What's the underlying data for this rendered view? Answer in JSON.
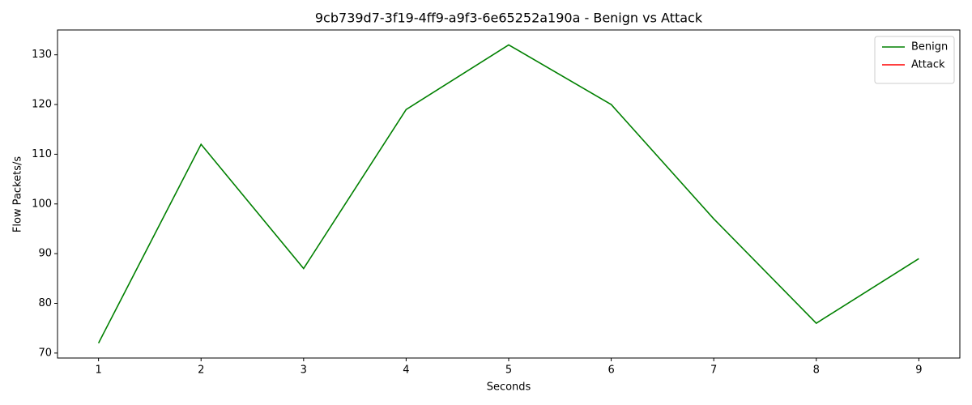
{
  "chart_data": {
    "type": "line",
    "title": "9cb739d7-3f19-4ff9-a9f3-6e65252a190a - Benign vs Attack",
    "xlabel": "Seconds",
    "ylabel": "Flow Packets/s",
    "x": [
      1,
      2,
      3,
      4,
      5,
      6,
      7,
      8,
      9
    ],
    "series": [
      {
        "name": "Benign",
        "color": "#008000",
        "values": [
          72,
          112,
          87,
          119,
          132,
          120,
          97,
          76,
          89
        ]
      },
      {
        "name": "Attack",
        "color": "#ff0000",
        "values": [
          null,
          null,
          null,
          null,
          null,
          null,
          null,
          null,
          null
        ]
      }
    ],
    "xlim": [
      0.6,
      9.4
    ],
    "xticks": [
      1,
      2,
      3,
      4,
      5,
      6,
      7,
      8,
      9
    ],
    "ylim": [
      69,
      135
    ],
    "yticks": [
      70,
      80,
      90,
      100,
      110,
      120,
      130
    ],
    "grid": false,
    "legend": "upper right"
  }
}
